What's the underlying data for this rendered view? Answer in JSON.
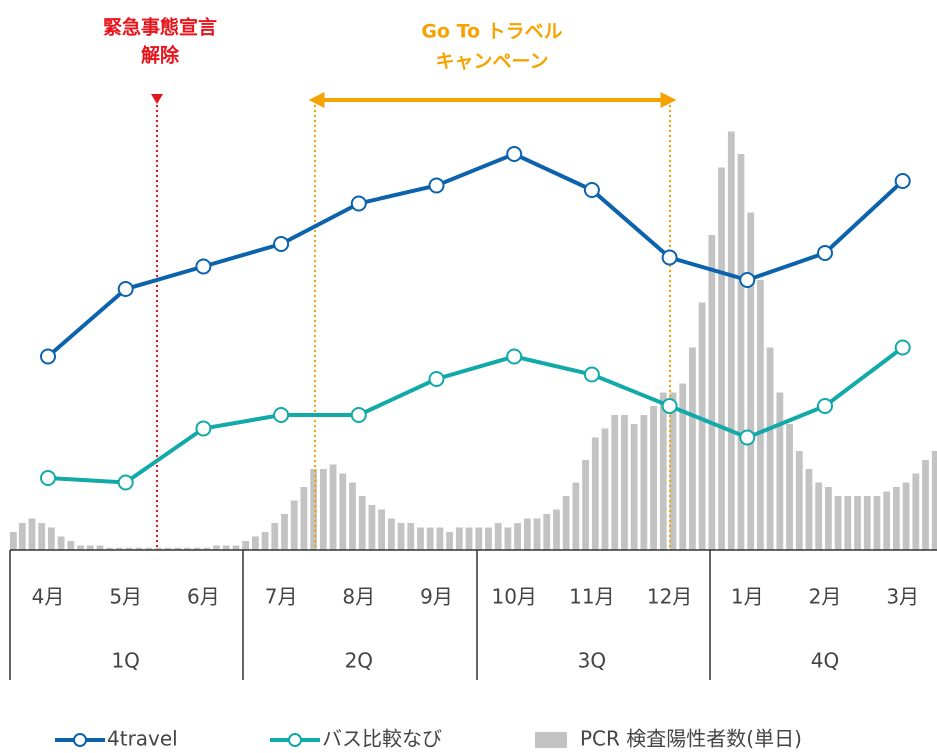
{
  "chart_data": {
    "type": "line",
    "categories": [
      "4月",
      "5月",
      "6月",
      "7月",
      "8月",
      "9月",
      "10月",
      "11月",
      "12月",
      "1月",
      "2月",
      "3月"
    ],
    "groups": [
      "1Q",
      "2Q",
      "3Q",
      "4Q"
    ],
    "ylim": [
      0,
      100
    ],
    "series": [
      {
        "name": "4travel",
        "color": "#0b62ad",
        "values": [
          43,
          58,
          63,
          68,
          77,
          81,
          88,
          80,
          65,
          60,
          66,
          82
        ]
      },
      {
        "name": "バス比較なび",
        "color": "#12a9a9",
        "values": [
          16,
          15,
          27,
          30,
          30,
          38,
          43,
          39,
          32,
          25,
          32,
          45
        ]
      }
    ],
    "bars": {
      "name": "PCR 検査陽性者数(単日)",
      "color": "#c3c3c3",
      "values": [
        4,
        6,
        7,
        6,
        5,
        3,
        2,
        1,
        1,
        1,
        0.5,
        0.5,
        0.5,
        0.5,
        0.5,
        0.5,
        0.5,
        0.5,
        0.5,
        0.5,
        0.5,
        1,
        1,
        1,
        2,
        3,
        4,
        6,
        8,
        11,
        14,
        18,
        18,
        19,
        17,
        15,
        12,
        10,
        9,
        7,
        6,
        6,
        5,
        5,
        5,
        4,
        5,
        5,
        5,
        5,
        6,
        5,
        6,
        7,
        7,
        8,
        9,
        12,
        15,
        20,
        25,
        27,
        30,
        30,
        28,
        30,
        32,
        35,
        35,
        37,
        45,
        55,
        70,
        85,
        93,
        88,
        75,
        60,
        45,
        35,
        28,
        22,
        18,
        15,
        14,
        12,
        12,
        12,
        12,
        12,
        13,
        14,
        15,
        17,
        20,
        22
      ]
    },
    "annotations": [
      {
        "text": [
          "緊急事態宣言",
          "解除"
        ],
        "color": "#e8141c"
      },
      {
        "text": [
          "Go To トラベル",
          "キャンペーン"
        ],
        "color": "#f5a300"
      }
    ]
  }
}
